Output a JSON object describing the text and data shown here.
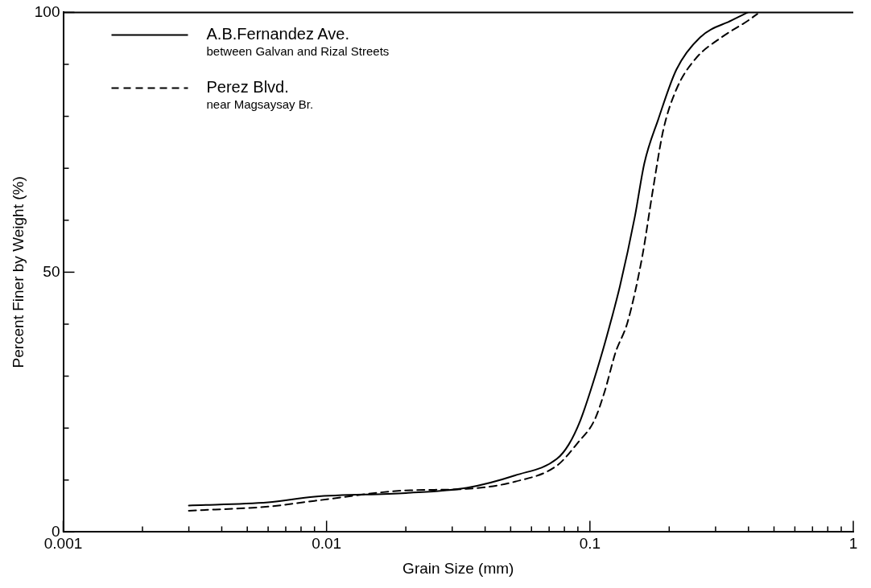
{
  "chart_data": {
    "type": "line",
    "xlabel": "Grain Size (mm)",
    "ylabel": "Percent Finer by Weight (%)",
    "log": "x",
    "xlim": [
      0.001,
      1
    ],
    "ylim": [
      0,
      100
    ],
    "xticks": [
      0.001,
      {
        "value": 0.002,
        "label": null
      },
      {
        "value": 0.003,
        "label": null
      },
      {
        "value": 0.004,
        "label": null
      },
      {
        "value": 0.005,
        "label": null
      },
      {
        "value": 0.006,
        "label": null
      },
      {
        "value": 0.007,
        "label": null
      },
      {
        "value": 0.008,
        "label": null
      },
      {
        "value": 0.009,
        "label": null
      },
      0.01,
      {
        "value": 0.02,
        "label": null
      },
      {
        "value": 0.03,
        "label": null
      },
      {
        "value": 0.04,
        "label": null
      },
      {
        "value": 0.05,
        "label": null
      },
      {
        "value": 0.06,
        "label": null
      },
      {
        "value": 0.07,
        "label": null
      },
      {
        "value": 0.08,
        "label": null
      },
      {
        "value": 0.09,
        "label": null
      },
      0.1,
      {
        "value": 0.2,
        "label": null
      },
      {
        "value": 0.3,
        "label": null
      },
      {
        "value": 0.4,
        "label": null
      },
      {
        "value": 0.5,
        "label": null
      },
      {
        "value": 0.6,
        "label": null
      },
      {
        "value": 0.7,
        "label": null
      },
      {
        "value": 0.8,
        "label": null
      },
      {
        "value": 0.9,
        "label": null
      },
      1
    ],
    "yticks": [
      0,
      {
        "value": 10,
        "label": null
      },
      {
        "value": 20,
        "label": null
      },
      {
        "value": 30,
        "label": null
      },
      {
        "value": 40,
        "label": null
      },
      50,
      {
        "value": 60,
        "label": null
      },
      {
        "value": 70,
        "label": null
      },
      {
        "value": 80,
        "label": null
      },
      {
        "value": 90,
        "label": null
      },
      100
    ],
    "grid": false,
    "legend": "top left",
    "marker": "none",
    "series": [
      {
        "name": "A.B.Fernandez Ave.\nbetween Galvan and Rizal Streets",
        "color": "#000000",
        "line_style": "solid",
        "x": [
          0.003,
          0.006,
          0.009,
          0.02,
          0.034,
          0.052,
          0.075,
          0.083,
          0.092,
          0.102,
          0.112,
          0.12,
          0.13,
          0.148,
          0.161,
          0.182,
          0.213,
          0.262,
          0.346,
          0.398
        ],
        "values": [
          5.1,
          5.7,
          6.8,
          7.5,
          8.5,
          10.9,
          14.1,
          16.8,
          21.5,
          28.2,
          35,
          40.5,
          47.3,
          60.6,
          71,
          79.5,
          89,
          95.2,
          98.5,
          100
        ]
      },
      {
        "name": "Perez Blvd.\nnear Magsaysay Br.",
        "color": "#000000",
        "line_style": "dashed",
        "x": [
          0.003,
          0.006,
          0.009,
          0.02,
          0.034,
          0.052,
          0.075,
          0.09,
          0.104,
          0.114,
          0.125,
          0.139,
          0.158,
          0.173,
          0.19,
          0.213,
          0.251,
          0.316,
          0.398,
          0.432
        ],
        "values": [
          4.1,
          4.9,
          6,
          8,
          8.3,
          9.7,
          12.8,
          17.2,
          21.5,
          27.2,
          34.5,
          40.4,
          53,
          65.5,
          77.4,
          85.2,
          91,
          95.2,
          98.4,
          99.7
        ]
      }
    ]
  }
}
